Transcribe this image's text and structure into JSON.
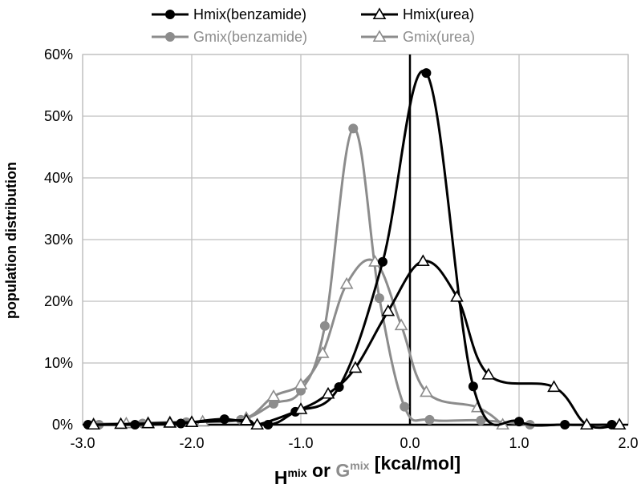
{
  "chart_data": {
    "type": "line",
    "xlabel": {
      "parts": [
        {
          "text": "H",
          "color": "#000000"
        },
        {
          "text": "mix",
          "color": "#000000",
          "sup": true
        },
        {
          "text": " or ",
          "color": "#000000"
        },
        {
          "text": "G",
          "color": "#8c8c8c"
        },
        {
          "text": "mix",
          "color": "#8c8c8c",
          "sup": true
        },
        {
          "text": " [kcal/mol]",
          "color": "#000000"
        }
      ]
    },
    "ylabel": "population distribution",
    "xlim": [
      -3.0,
      2.0
    ],
    "ylim": [
      0,
      0.6
    ],
    "x_ticks": [
      -3.0,
      -2.0,
      -1.0,
      0.0,
      1.0,
      2.0
    ],
    "x_tick_labels": [
      "-3.0",
      "-2.0",
      "-1.0",
      "0.0",
      "1.0",
      "2.0"
    ],
    "y_ticks": [
      0,
      0.1,
      0.2,
      0.3,
      0.4,
      0.5,
      0.6
    ],
    "y_tick_labels": [
      "0%",
      "10%",
      "20%",
      "30%",
      "40%",
      "50%",
      "60%"
    ],
    "grid": true,
    "legend_position": "top",
    "series": [
      {
        "name": "Hmix(benzamide)",
        "color": "#000000",
        "marker": "filled-circle",
        "x": [
          -2.95,
          -2.52,
          -2.1,
          -1.7,
          -1.3,
          -1.05,
          -0.65,
          -0.25,
          0.15,
          0.58,
          1.0,
          1.42,
          1.85
        ],
        "y": [
          0.0,
          0.0,
          0.002,
          0.009,
          0.0,
          0.021,
          0.061,
          0.264,
          0.57,
          0.062,
          0.005,
          0.0,
          0.0
        ]
      },
      {
        "name": "Hmix(urea)",
        "color": "#000000",
        "marker": "open-triangle",
        "x": [
          -2.9,
          -2.65,
          -2.4,
          -2.2,
          -2.0,
          -1.5,
          -1.4,
          -1.0,
          -0.75,
          -0.5,
          -0.2,
          0.12,
          0.43,
          0.72,
          1.32,
          1.62,
          1.92
        ],
        "y": [
          0.0,
          0.001,
          0.002,
          0.003,
          0.004,
          0.007,
          0.0,
          0.025,
          0.05,
          0.092,
          0.184,
          0.265,
          0.207,
          0.081,
          0.061,
          0.0,
          0.0
        ]
      },
      {
        "name": "Gmix(benzamide)",
        "color": "#8c8c8c",
        "marker": "filled-circle",
        "x": [
          -2.85,
          -2.45,
          -2.05,
          -1.55,
          -1.25,
          -1.0,
          -0.78,
          -0.52,
          -0.28,
          -0.05,
          0.18,
          0.65,
          1.1
        ],
        "y": [
          0.0,
          0.002,
          0.004,
          0.008,
          0.034,
          0.055,
          0.16,
          0.48,
          0.205,
          0.029,
          0.008,
          0.007,
          0.0
        ]
      },
      {
        "name": "Gmix(urea)",
        "color": "#8c8c8c",
        "marker": "open-triangle",
        "x": [
          -2.9,
          -2.6,
          -2.4,
          -2.2,
          -1.9,
          -1.5,
          -1.25,
          -1.0,
          -0.8,
          -0.58,
          -0.32,
          -0.08,
          0.15,
          0.62,
          0.85
        ],
        "y": [
          0.001,
          0.002,
          0.003,
          0.004,
          0.005,
          0.011,
          0.046,
          0.065,
          0.116,
          0.228,
          0.264,
          0.161,
          0.053,
          0.028,
          0.0
        ]
      }
    ]
  }
}
